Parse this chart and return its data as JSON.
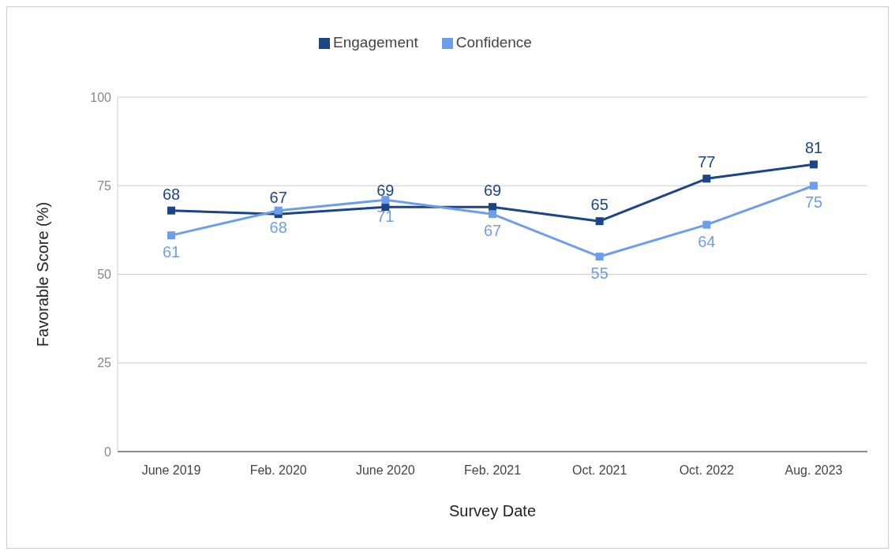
{
  "chart_data": {
    "type": "line",
    "xlabel": "Survey Date",
    "ylabel": "Favorable Score (%)",
    "categories": [
      "June 2019",
      "Feb. 2020",
      "June 2020",
      "Feb. 2021",
      "Oct. 2021",
      "Oct. 2022",
      "Aug. 2023"
    ],
    "series": [
      {
        "name": "Engagement",
        "color": "#1c4587",
        "values": [
          68,
          67,
          69,
          69,
          65,
          77,
          81
        ]
      },
      {
        "name": "Confidence",
        "color": "#6d9eeb",
        "values": [
          61,
          68,
          71,
          67,
          55,
          64,
          75
        ]
      }
    ],
    "ylim": [
      0,
      100
    ],
    "yticks": [
      0,
      25,
      50,
      75,
      100
    ],
    "grid": "y",
    "legend": "top",
    "marker": "square",
    "line_style": "solid",
    "data_labels": true
  }
}
